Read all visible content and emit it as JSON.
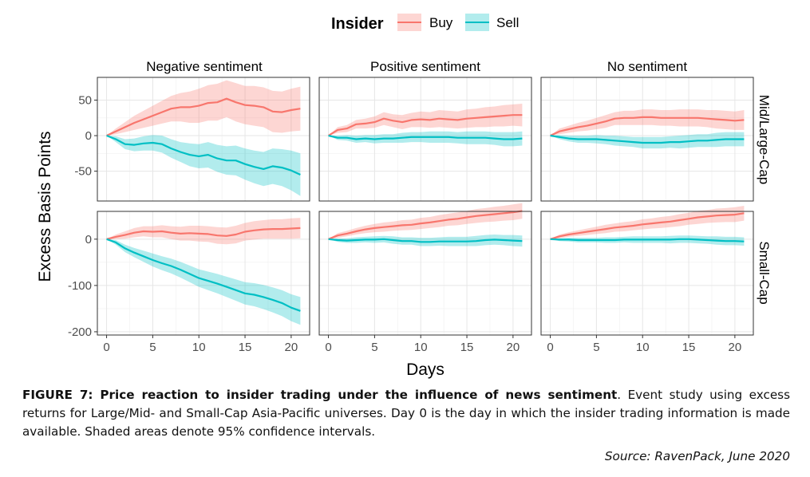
{
  "legend": {
    "title": "Insider",
    "items": [
      {
        "label": "Buy",
        "color": "#F8766D",
        "fill": "#F8766D"
      },
      {
        "label": "Sell",
        "color": "#00BFC4",
        "fill": "#00BFC4"
      }
    ]
  },
  "caption": {
    "bold": "FIGURE 7: Price reaction to insider trading under the influence of news sentiment",
    "rest": ". Event study using excess returns for Large/Mid- and Small-Cap Asia-Pacific universes. Day 0 is the day in which the insider trading information is made available. Shaded areas denote 95% confidence intervals."
  },
  "source": "Source: RavenPack, June 2020",
  "chart_data": {
    "type": "line",
    "xlabel": "Days",
    "ylabel": "Excess Basis Points",
    "x_ticks": [
      0,
      5,
      10,
      15,
      20
    ],
    "xlim": [
      -1,
      22
    ],
    "columns": [
      "Negative sentiment",
      "Positive sentiment",
      "No sentiment"
    ],
    "rows": [
      {
        "label": "Mid/Large-Cap",
        "ylim": [
          -92,
          82
        ],
        "y_ticks": [
          50,
          0,
          -50
        ],
        "y_tick_labels": [
          "50",
          "0",
          "-50"
        ]
      },
      {
        "label": "Small-Cap",
        "ylim": [
          -207,
          60
        ],
        "y_ticks": [
          0,
          -100,
          -200
        ],
        "y_tick_labels": [
          "0",
          "-100",
          "-200"
        ]
      }
    ],
    "x": [
      0,
      1,
      2,
      3,
      4,
      5,
      6,
      7,
      8,
      9,
      10,
      11,
      12,
      13,
      14,
      15,
      16,
      17,
      18,
      19,
      20,
      21
    ],
    "panels": [
      {
        "row": "Mid/Large-Cap",
        "column": "Negative sentiment",
        "series": [
          {
            "name": "Buy",
            "values": [
              0,
              6,
              12,
              18,
              23,
              28,
              33,
              38,
              40,
              40,
              42,
              46,
              47,
              52,
              47,
              43,
              42,
              40,
              34,
              33,
              36,
              38
            ],
            "ci_half": [
              0,
              4,
              7,
              10,
              12,
              14,
              16,
              18,
              20,
              22,
              24,
              25,
              26,
              26,
              27,
              27,
              28,
              28,
              29,
              29,
              30,
              31
            ]
          },
          {
            "name": "Sell",
            "values": [
              0,
              -5,
              -12,
              -13,
              -11,
              -10,
              -12,
              -18,
              -23,
              -27,
              -29,
              -27,
              -32,
              -35,
              -35,
              -40,
              -44,
              -47,
              -43,
              -45,
              -49,
              -55
            ],
            "ci_half": [
              0,
              4,
              7,
              9,
              10,
              11,
              12,
              13,
              14,
              16,
              17,
              18,
              19,
              20,
              21,
              22,
              23,
              24,
              25,
              26,
              28,
              30
            ]
          }
        ]
      },
      {
        "row": "Mid/Large-Cap",
        "column": "Positive sentiment",
        "series": [
          {
            "name": "Buy",
            "values": [
              0,
              8,
              10,
              16,
              17,
              19,
              24,
              21,
              19,
              22,
              23,
              22,
              24,
              23,
              22,
              24,
              25,
              26,
              27,
              28,
              29,
              29
            ],
            "ci_half": [
              0,
              4,
              5,
              6,
              7,
              8,
              9,
              9,
              10,
              10,
              11,
              11,
              12,
              12,
              12,
              13,
              13,
              14,
              14,
              15,
              15,
              16
            ]
          },
          {
            "name": "Sell",
            "values": [
              0,
              -3,
              -3,
              -5,
              -4,
              -5,
              -4,
              -4,
              -3,
              -2,
              -2,
              -2,
              -2,
              -2,
              -3,
              -3,
              -3,
              -3,
              -4,
              -5,
              -5,
              -4
            ],
            "ci_half": [
              0,
              3,
              4,
              5,
              5,
              6,
              6,
              6,
              7,
              7,
              7,
              8,
              8,
              8,
              8,
              9,
              9,
              9,
              9,
              10,
              10,
              10
            ]
          }
        ]
      },
      {
        "row": "Mid/Large-Cap",
        "column": "No sentiment",
        "series": [
          {
            "name": "Buy",
            "values": [
              0,
              6,
              9,
              12,
              14,
              17,
              20,
              24,
              25,
              25,
              26,
              26,
              25,
              25,
              25,
              25,
              25,
              24,
              23,
              22,
              21,
              22
            ],
            "ci_half": [
              0,
              4,
              5,
              6,
              7,
              8,
              9,
              9,
              10,
              10,
              11,
              11,
              11,
              11,
              12,
              12,
              12,
              12,
              13,
              13,
              13,
              14
            ]
          },
          {
            "name": "Sell",
            "values": [
              0,
              -2,
              -4,
              -5,
              -5,
              -5,
              -6,
              -7,
              -8,
              -9,
              -10,
              -10,
              -10,
              -9,
              -9,
              -8,
              -7,
              -7,
              -6,
              -5,
              -5,
              -5
            ],
            "ci_half": [
              0,
              3,
              4,
              5,
              5,
              6,
              6,
              7,
              7,
              7,
              8,
              8,
              8,
              8,
              9,
              9,
              9,
              9,
              10,
              10,
              10,
              10
            ]
          }
        ]
      },
      {
        "row": "Small-Cap",
        "column": "Negative sentiment",
        "series": [
          {
            "name": "Buy",
            "values": [
              0,
              5,
              9,
              14,
              17,
              16,
              17,
              14,
              12,
              13,
              12,
              11,
              8,
              7,
              10,
              16,
              19,
              21,
              22,
              22,
              23,
              24
            ],
            "ci_half": [
              0,
              5,
              8,
              10,
              11,
              12,
              13,
              14,
              15,
              16,
              17,
              17,
              18,
              18,
              19,
              19,
              20,
              20,
              21,
              21,
              22,
              22
            ]
          },
          {
            "name": "Sell",
            "values": [
              0,
              -7,
              -20,
              -29,
              -37,
              -45,
              -52,
              -58,
              -66,
              -75,
              -84,
              -90,
              -96,
              -103,
              -110,
              -117,
              -120,
              -125,
              -131,
              -138,
              -148,
              -155
            ],
            "ci_half": [
              0,
              5,
              8,
              10,
              12,
              14,
              15,
              16,
              17,
              18,
              19,
              20,
              21,
              22,
              23,
              24,
              25,
              26,
              27,
              28,
              29,
              30
            ]
          }
        ]
      },
      {
        "row": "Small-Cap",
        "column": "Positive sentiment",
        "series": [
          {
            "name": "Buy",
            "values": [
              0,
              8,
              12,
              17,
              21,
              24,
              26,
              28,
              30,
              31,
              34,
              36,
              39,
              42,
              44,
              47,
              50,
              52,
              54,
              56,
              58,
              61
            ],
            "ci_half": [
              0,
              5,
              6,
              7,
              8,
              9,
              10,
              10,
              11,
              11,
              12,
              12,
              13,
              13,
              14,
              14,
              15,
              15,
              16,
              16,
              17,
              17
            ]
          },
          {
            "name": "Sell",
            "values": [
              0,
              -2,
              -3,
              -2,
              -1,
              -1,
              0,
              -2,
              -4,
              -4,
              -6,
              -6,
              -5,
              -5,
              -5,
              -5,
              -4,
              -2,
              -1,
              -2,
              -3,
              -4
            ],
            "ci_half": [
              0,
              4,
              5,
              6,
              6,
              7,
              7,
              8,
              8,
              8,
              9,
              9,
              9,
              10,
              10,
              10,
              11,
              11,
              11,
              11,
              12,
              12
            ]
          }
        ]
      },
      {
        "row": "Small-Cap",
        "column": "No sentiment",
        "series": [
          {
            "name": "Buy",
            "values": [
              0,
              6,
              10,
              13,
              16,
              19,
              22,
              25,
              27,
              29,
              32,
              34,
              36,
              38,
              41,
              44,
              47,
              49,
              51,
              52,
              53,
              56
            ],
            "ci_half": [
              0,
              4,
              5,
              6,
              7,
              8,
              9,
              9,
              10,
              10,
              11,
              11,
              12,
              12,
              13,
              13,
              14,
              14,
              15,
              15,
              16,
              16
            ]
          },
          {
            "name": "Sell",
            "values": [
              0,
              -1,
              -1,
              -2,
              -2,
              -2,
              -2,
              -2,
              -1,
              -1,
              -1,
              -1,
              -1,
              -1,
              0,
              0,
              -1,
              -2,
              -3,
              -4,
              -4,
              -5
            ],
            "ci_half": [
              0,
              3,
              4,
              5,
              5,
              5,
              6,
              6,
              6,
              7,
              7,
              7,
              7,
              8,
              8,
              8,
              8,
              8,
              9,
              9,
              9,
              9
            ]
          }
        ]
      }
    ]
  }
}
